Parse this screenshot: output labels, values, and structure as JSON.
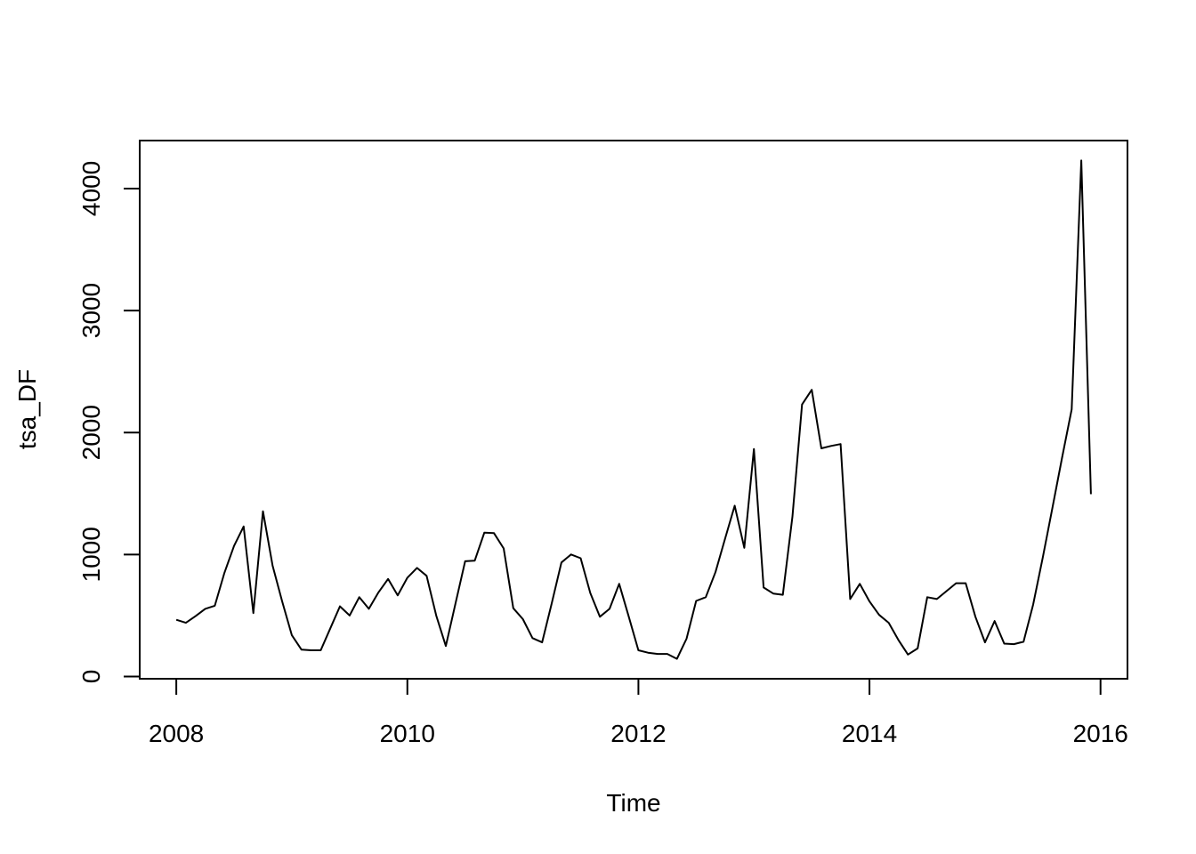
{
  "figure": {
    "background_color": "#ffffff",
    "foreground_color": "#000000"
  },
  "chart_data": {
    "type": "line",
    "title": "",
    "xlabel": "Time",
    "ylabel": "tsa_DF",
    "series_name": "tsa_DF",
    "x_start_year": 2008,
    "frequency": 12,
    "values": [
      465,
      440,
      495,
      555,
      580,
      850,
      1070,
      1230,
      520,
      1355,
      910,
      615,
      340,
      220,
      215,
      215,
      395,
      575,
      500,
      650,
      555,
      690,
      800,
      665,
      810,
      890,
      825,
      500,
      250,
      600,
      945,
      950,
      1180,
      1175,
      1050,
      560,
      470,
      315,
      280,
      600,
      935,
      1000,
      970,
      685,
      490,
      555,
      760,
      490,
      215,
      195,
      185,
      185,
      145,
      310,
      620,
      650,
      855,
      1130,
      1400,
      1055,
      1865,
      730,
      680,
      670,
      1310,
      2230,
      2350,
      1870,
      1890,
      1905,
      635,
      760,
      615,
      505,
      440,
      300,
      180,
      230,
      650,
      635,
      700,
      765,
      765,
      490,
      280,
      455,
      270,
      265,
      285,
      590,
      975,
      1380,
      1790,
      2190,
      4230,
      1495
    ],
    "xticks": [
      2008,
      2010,
      2012,
      2014,
      2016
    ],
    "yticks": [
      0,
      1000,
      2000,
      3000,
      4000
    ],
    "xlim": [
      2007.6833,
      2016.2333
    ],
    "ylim": [
      -18.4,
      4393.4
    ],
    "grid": false,
    "legend": null,
    "line_color": "#000000",
    "line_width": 2
  }
}
